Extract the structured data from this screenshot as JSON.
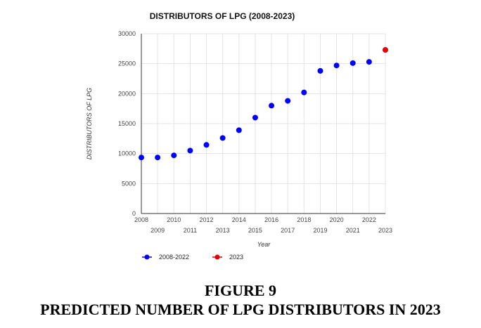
{
  "figure": {
    "number": "FIGURE 9",
    "caption": "PREDICTED NUMBER OF LPG DISTRIBUTORS IN 2023"
  },
  "chart_data": {
    "type": "scatter",
    "title": "DISTRIBUTORS OF LPG (2008-2023)",
    "xlabel": "Year",
    "ylabel": "DISTRIBUTORS OF LPG",
    "xlim": [
      2008,
      2023
    ],
    "ylim": [
      0,
      30000
    ],
    "x_ticks": [
      2008,
      2009,
      2010,
      2011,
      2012,
      2013,
      2014,
      2015,
      2016,
      2017,
      2018,
      2019,
      2020,
      2021,
      2022,
      2023
    ],
    "y_ticks": [
      0,
      5000,
      10000,
      15000,
      20000,
      25000,
      30000
    ],
    "grid": true,
    "legend_position": "bottom",
    "series": [
      {
        "name": "2008-2022",
        "color": "#0000ff",
        "x": [
          2008,
          2009,
          2010,
          2011,
          2012,
          2013,
          2014,
          2015,
          2016,
          2017,
          2018,
          2019,
          2020,
          2021,
          2022
        ],
        "y": [
          9350,
          9350,
          9700,
          10500,
          11450,
          12600,
          13900,
          16000,
          18000,
          18800,
          20200,
          23800,
          24700,
          25100,
          25300
        ]
      },
      {
        "name": "2023",
        "color": "#e60000",
        "x": [
          2023
        ],
        "y": [
          27300
        ]
      }
    ]
  }
}
